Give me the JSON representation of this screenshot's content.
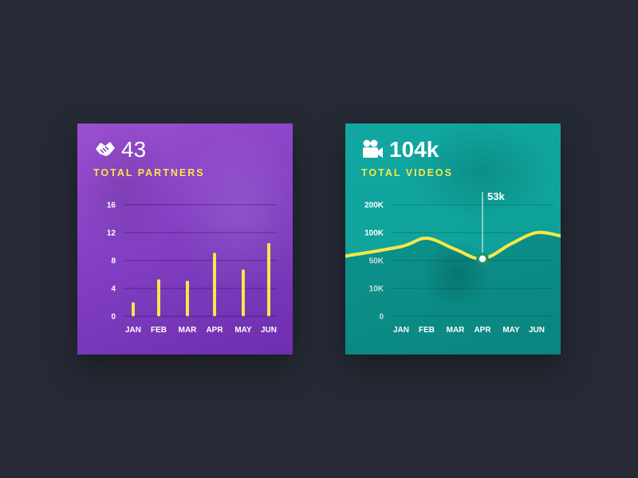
{
  "cards": [
    {
      "icon": "handshake-icon",
      "value": "43",
      "label": "TOTAL PARTNERS"
    },
    {
      "icon": "video-camera-icon",
      "value": "104k",
      "label": "TOTAL VIDEOS"
    }
  ],
  "colors": {
    "accent": "#f5e84a",
    "page_background": "#252a35",
    "partners_card": "#8440c4",
    "videos_card": "#0fa39b"
  },
  "chart_data": [
    {
      "type": "bar",
      "title": "TOTAL PARTNERS",
      "categories": [
        "JAN",
        "FEB",
        "MAR",
        "APR",
        "MAY",
        "JUN"
      ],
      "values": [
        2,
        5.3,
        5.1,
        9.1,
        6.7,
        10.5
      ],
      "yticks": [
        "0",
        "4",
        "8",
        "12",
        "16"
      ],
      "ylim": [
        0,
        16
      ],
      "grid": true
    },
    {
      "type": "line",
      "title": "TOTAL VIDEOS",
      "categories": [
        "JAN",
        "FEB",
        "MAR",
        "APR",
        "MAY",
        "JUN"
      ],
      "values": [
        75,
        90,
        70,
        53,
        80,
        100
      ],
      "yticks": [
        "0",
        "10K",
        "50K",
        "100K",
        "200K"
      ],
      "highlight": {
        "category": "APR",
        "label": "53k"
      },
      "grid": true
    }
  ]
}
